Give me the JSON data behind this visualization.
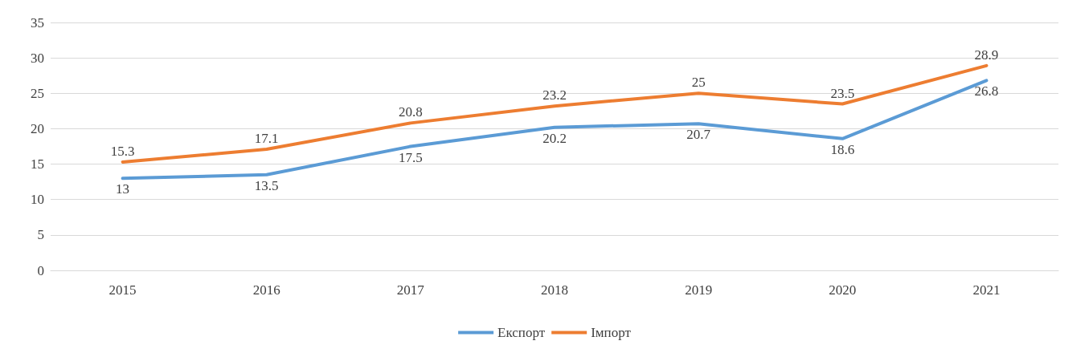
{
  "chart_data": {
    "type": "line",
    "categories": [
      "2015",
      "2016",
      "2017",
      "2018",
      "2019",
      "2020",
      "2021"
    ],
    "series": [
      {
        "name": "Експорт",
        "color": "#5b9bd5",
        "values": [
          13,
          13.5,
          17.5,
          20.2,
          20.7,
          18.6,
          26.8
        ]
      },
      {
        "name": "Імпорт",
        "color": "#ed7d31",
        "values": [
          15.3,
          17.1,
          20.8,
          23.2,
          25,
          23.5,
          28.9
        ]
      }
    ],
    "ylim": [
      0,
      35
    ],
    "yticks": [
      0,
      5,
      10,
      15,
      20,
      25,
      30,
      35
    ],
    "grid": "y",
    "legend": "bottom",
    "data_labels": true,
    "marker": "none",
    "line_style": "solid"
  }
}
